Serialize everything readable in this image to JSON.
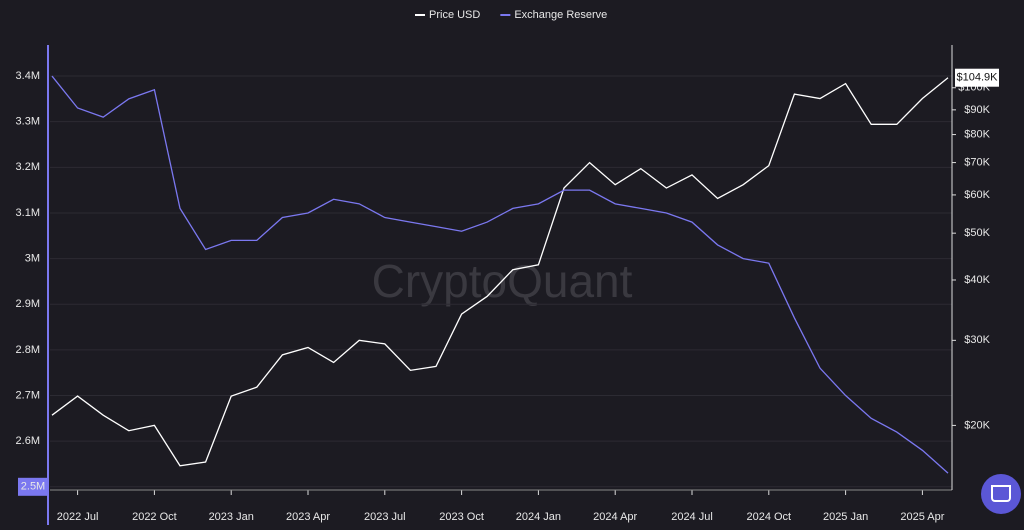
{
  "chart_data": {
    "type": "line",
    "watermark": "CryptoQuant",
    "x": [
      "2022 Jun",
      "2022 Jul",
      "2022 Aug",
      "2022 Sep",
      "2022 Oct",
      "2022 Nov",
      "2022 Dec",
      "2023 Jan",
      "2023 Feb",
      "2023 Mar",
      "2023 Apr",
      "2023 May",
      "2023 Jun",
      "2023 Jul",
      "2023 Aug",
      "2023 Sep",
      "2023 Oct",
      "2023 Nov",
      "2023 Dec",
      "2024 Jan",
      "2024 Feb",
      "2024 Mar",
      "2024 Apr",
      "2024 May",
      "2024 Jun",
      "2024 Jul",
      "2024 Aug",
      "2024 Sep",
      "2024 Oct",
      "2024 Nov",
      "2024 Dec",
      "2025 Jan",
      "2025 Feb",
      "2025 Mar",
      "2025 Apr",
      "2025 May"
    ],
    "xticks": [
      "2022 Jul",
      "2022 Oct",
      "2023 Jan",
      "2023 Apr",
      "2023 Jul",
      "2023 Oct",
      "2024 Jan",
      "2024 Apr",
      "2024 Jul",
      "2024 Oct",
      "2025 Jan",
      "2025 Apr"
    ],
    "series": [
      {
        "name": "Price USD",
        "color": "#ffffff",
        "axis": "y2",
        "values": [
          21000,
          23000,
          21000,
          19500,
          20000,
          16500,
          16800,
          23000,
          24000,
          28000,
          29000,
          27000,
          30000,
          29500,
          26000,
          26500,
          34000,
          37000,
          42000,
          43000,
          62000,
          70000,
          63000,
          68000,
          62000,
          66000,
          59000,
          63000,
          69000,
          97000,
          95000,
          102000,
          84000,
          84000,
          95000,
          104900
        ],
        "value_labels": [
          null,
          null,
          null,
          null,
          null,
          null,
          null,
          null,
          null,
          null,
          null,
          null,
          null,
          null,
          null,
          null,
          null,
          null,
          null,
          null,
          null,
          null,
          null,
          null,
          null,
          null,
          null,
          null,
          null,
          null,
          null,
          null,
          null,
          null,
          null,
          "$104.9K"
        ]
      },
      {
        "name": "Exchange Reserve",
        "color": "#7b78f0",
        "values": [
          3.4,
          3.33,
          3.31,
          3.35,
          3.37,
          3.11,
          3.02,
          3.04,
          3.04,
          3.09,
          3.1,
          3.13,
          3.12,
          3.09,
          3.08,
          3.07,
          3.06,
          3.08,
          3.11,
          3.12,
          3.15,
          3.15,
          3.12,
          3.11,
          3.1,
          3.08,
          3.03,
          3.0,
          2.99,
          2.87,
          2.76,
          2.7,
          2.65,
          2.62,
          2.58,
          2.53
        ]
      }
    ],
    "ylim": [
      2.493,
      3.468
    ],
    "yticks": [
      {
        "value": 2.5,
        "label": "2.5M"
      },
      {
        "value": 2.6,
        "label": "2.6M"
      },
      {
        "value": 2.7,
        "label": "2.7M"
      },
      {
        "value": 2.8,
        "label": "2.8M"
      },
      {
        "value": 2.9,
        "label": "2.9M"
      },
      {
        "value": 3,
        "label": "3M"
      },
      {
        "value": 3.1,
        "label": "3.1M"
      },
      {
        "value": 3.2,
        "label": "3.2M"
      },
      {
        "value": 3.3,
        "label": "3.3M"
      },
      {
        "value": 3.4,
        "label": "3.4M"
      }
    ],
    "y2lim": [
      14700,
      122600
    ],
    "y2log": true,
    "y2ticks": [
      {
        "value": 20000,
        "label": "$20K"
      },
      {
        "value": 30000,
        "label": "$30K"
      },
      {
        "value": 40000,
        "label": "$40K"
      },
      {
        "value": 50000,
        "label": "$50K"
      },
      {
        "value": 60000,
        "label": "$60K"
      },
      {
        "value": 70000,
        "label": "$70K"
      },
      {
        "value": 80000,
        "label": "$80K"
      },
      {
        "value": 90000,
        "label": "$90K"
      },
      {
        "value": 100000,
        "label": "$100K"
      }
    ],
    "grid": true,
    "legend": "top"
  }
}
